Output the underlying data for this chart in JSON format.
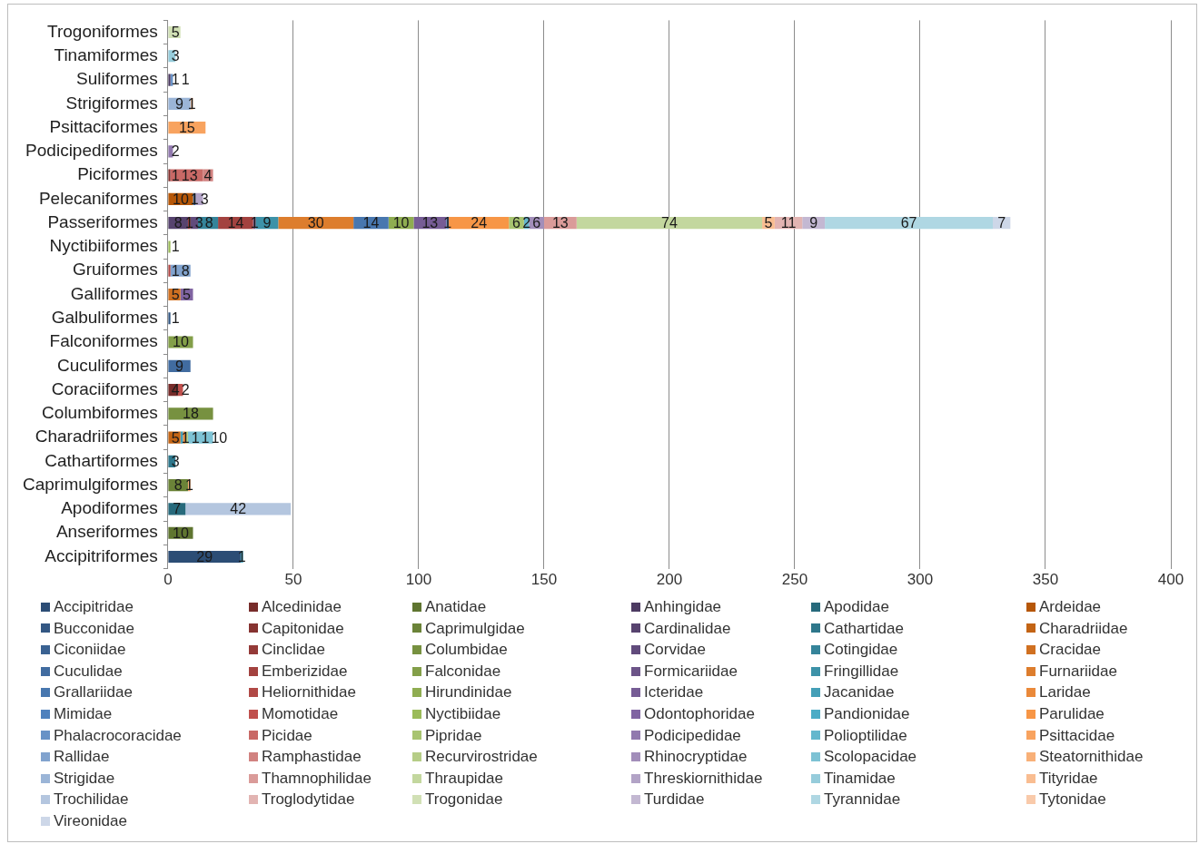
{
  "chart_data": {
    "type": "bar",
    "orientation": "horizontal",
    "stacked": true,
    "data_labels": true,
    "grid": "x",
    "legend": "bottom",
    "categories": [
      "Trogoniformes",
      "Tinamiformes",
      "Suliformes",
      "Strigiformes",
      "Psittaciformes",
      "Podicipediformes",
      "Piciformes",
      "Pelecaniformes",
      "Passeriformes",
      "Nyctibiiformes",
      "Gruiformes",
      "Galliformes",
      "Galbuliformes",
      "Falconiformes",
      "Cuculiformes",
      "Coraciiformes",
      "Columbiformes",
      "Charadriiformes",
      "Cathartiformes",
      "Caprimulgiformes",
      "Apodiformes",
      "Anseriformes",
      "Accipitriformes"
    ],
    "xlim": [
      0,
      400
    ],
    "xticks": [
      0,
      50,
      100,
      150,
      200,
      250,
      300,
      350,
      400
    ],
    "series": [
      {
        "name": "Accipitridae",
        "color": "#2c4d75",
        "values": [
          null,
          null,
          null,
          null,
          null,
          null,
          null,
          null,
          null,
          null,
          null,
          null,
          null,
          null,
          null,
          null,
          null,
          null,
          null,
          null,
          null,
          null,
          29
        ]
      },
      {
        "name": "Alcedinidae",
        "color": "#772c2a",
        "values": [
          null,
          null,
          null,
          null,
          null,
          null,
          null,
          null,
          null,
          null,
          null,
          null,
          null,
          null,
          null,
          4,
          null,
          null,
          null,
          null,
          null,
          null,
          null
        ]
      },
      {
        "name": "Anatidae",
        "color": "#5f7530",
        "values": [
          null,
          null,
          null,
          null,
          null,
          null,
          null,
          null,
          null,
          null,
          null,
          null,
          null,
          null,
          null,
          null,
          null,
          null,
          null,
          null,
          null,
          10,
          null
        ]
      },
      {
        "name": "Anhingidae",
        "color": "#4d3b62",
        "values": [
          null,
          null,
          1,
          null,
          null,
          null,
          null,
          null,
          null,
          null,
          null,
          null,
          null,
          null,
          null,
          null,
          null,
          null,
          null,
          null,
          null,
          null,
          null
        ]
      },
      {
        "name": "Apodidae",
        "color": "#276a7c",
        "values": [
          null,
          null,
          null,
          null,
          null,
          null,
          null,
          null,
          null,
          null,
          null,
          null,
          null,
          null,
          null,
          null,
          null,
          null,
          null,
          null,
          7,
          null,
          null
        ]
      },
      {
        "name": "Ardeidae",
        "color": "#b65708",
        "values": [
          null,
          null,
          null,
          null,
          null,
          null,
          null,
          10,
          null,
          null,
          null,
          null,
          null,
          null,
          null,
          null,
          null,
          null,
          null,
          null,
          null,
          null,
          null
        ]
      },
      {
        "name": "Bucconidae",
        "color": "#335783",
        "values": [
          null,
          null,
          null,
          null,
          null,
          null,
          null,
          null,
          null,
          null,
          null,
          null,
          1,
          null,
          null,
          null,
          null,
          null,
          null,
          null,
          null,
          null,
          null
        ]
      },
      {
        "name": "Capitonidae",
        "color": "#863331",
        "values": [
          null,
          null,
          null,
          null,
          null,
          null,
          1,
          null,
          null,
          null,
          null,
          null,
          null,
          null,
          null,
          null,
          null,
          null,
          null,
          null,
          null,
          null,
          null
        ]
      },
      {
        "name": "Caprimulgidae",
        "color": "#6b8338",
        "values": [
          null,
          null,
          null,
          null,
          null,
          null,
          null,
          null,
          null,
          null,
          null,
          null,
          null,
          null,
          null,
          null,
          null,
          null,
          null,
          8,
          null,
          null,
          null
        ]
      },
      {
        "name": "Cardinalidae",
        "color": "#57436f",
        "values": [
          null,
          null,
          null,
          null,
          null,
          null,
          null,
          null,
          8,
          null,
          null,
          null,
          null,
          null,
          null,
          null,
          null,
          null,
          null,
          null,
          null,
          null,
          null
        ]
      },
      {
        "name": "Cathartidae",
        "color": "#2e778b",
        "values": [
          null,
          null,
          null,
          null,
          null,
          null,
          null,
          null,
          null,
          null,
          null,
          null,
          null,
          null,
          null,
          null,
          null,
          null,
          3,
          null,
          null,
          null,
          null
        ]
      },
      {
        "name": "Charadriidae",
        "color": "#c36414",
        "values": [
          null,
          null,
          null,
          null,
          null,
          null,
          null,
          null,
          null,
          null,
          null,
          null,
          null,
          null,
          null,
          null,
          null,
          5,
          null,
          null,
          null,
          null,
          null
        ]
      },
      {
        "name": "Ciconiidae",
        "color": "#3a6292",
        "values": [
          null,
          null,
          null,
          null,
          null,
          null,
          null,
          1,
          null,
          null,
          null,
          null,
          null,
          null,
          null,
          null,
          null,
          null,
          null,
          null,
          null,
          null,
          null
        ]
      },
      {
        "name": "Cinclidae",
        "color": "#943a38",
        "values": [
          null,
          null,
          null,
          null,
          null,
          null,
          null,
          null,
          1,
          null,
          null,
          null,
          null,
          null,
          null,
          null,
          null,
          null,
          null,
          null,
          null,
          null,
          null
        ]
      },
      {
        "name": "Columbidae",
        "color": "#779140",
        "values": [
          null,
          null,
          null,
          null,
          null,
          null,
          null,
          null,
          null,
          null,
          null,
          null,
          null,
          null,
          null,
          null,
          18,
          null,
          null,
          null,
          null,
          null,
          null
        ]
      },
      {
        "name": "Corvidae",
        "color": "#614b7c",
        "values": [
          null,
          null,
          null,
          null,
          null,
          null,
          null,
          null,
          3,
          null,
          null,
          null,
          null,
          null,
          null,
          null,
          null,
          null,
          null,
          null,
          null,
          null,
          null
        ]
      },
      {
        "name": "Cotingidae",
        "color": "#35849a",
        "values": [
          null,
          null,
          null,
          null,
          null,
          null,
          null,
          null,
          8,
          null,
          null,
          null,
          null,
          null,
          null,
          null,
          null,
          null,
          null,
          null,
          null,
          null,
          null
        ]
      },
      {
        "name": "Cracidae",
        "color": "#d07021",
        "values": [
          null,
          null,
          null,
          null,
          null,
          null,
          null,
          null,
          null,
          null,
          null,
          5,
          null,
          null,
          null,
          null,
          null,
          null,
          null,
          null,
          null,
          null,
          null
        ]
      },
      {
        "name": "Cuculidae",
        "color": "#416ca0",
        "values": [
          null,
          null,
          null,
          null,
          null,
          null,
          null,
          null,
          null,
          null,
          null,
          null,
          null,
          null,
          9,
          null,
          null,
          null,
          null,
          null,
          null,
          null,
          null
        ]
      },
      {
        "name": "Emberizidae",
        "color": "#a3423f",
        "values": [
          null,
          null,
          null,
          null,
          null,
          null,
          null,
          null,
          14,
          null,
          null,
          null,
          null,
          null,
          null,
          null,
          null,
          null,
          null,
          null,
          null,
          null,
          null
        ]
      },
      {
        "name": "Falconidae",
        "color": "#839f49",
        "values": [
          null,
          null,
          null,
          null,
          null,
          null,
          null,
          null,
          null,
          null,
          null,
          null,
          null,
          10,
          null,
          null,
          null,
          null,
          null,
          null,
          null,
          null,
          null
        ]
      },
      {
        "name": "Formicariidae",
        "color": "#6c5488",
        "values": [
          null,
          null,
          null,
          null,
          null,
          null,
          null,
          null,
          1,
          null,
          null,
          null,
          null,
          null,
          null,
          null,
          null,
          null,
          null,
          null,
          null,
          null,
          null
        ]
      },
      {
        "name": "Fringillidae",
        "color": "#3d92a8",
        "values": [
          null,
          null,
          null,
          null,
          null,
          null,
          null,
          null,
          9,
          null,
          null,
          null,
          null,
          null,
          null,
          null,
          null,
          null,
          null,
          null,
          null,
          null,
          null
        ]
      },
      {
        "name": "Furnariidae",
        "color": "#dd7d2d",
        "values": [
          null,
          null,
          null,
          null,
          null,
          null,
          null,
          null,
          30,
          null,
          null,
          null,
          null,
          null,
          null,
          null,
          null,
          null,
          null,
          null,
          null,
          null,
          null
        ]
      },
      {
        "name": "Grallariidae",
        "color": "#4877af",
        "values": [
          null,
          null,
          null,
          null,
          null,
          null,
          null,
          null,
          14,
          null,
          null,
          null,
          null,
          null,
          null,
          null,
          null,
          null,
          null,
          null,
          null,
          null,
          null
        ]
      },
      {
        "name": "Heliornithidae",
        "color": "#b14946",
        "values": [
          null,
          null,
          null,
          null,
          null,
          null,
          null,
          null,
          null,
          null,
          1,
          null,
          null,
          null,
          null,
          null,
          null,
          null,
          null,
          null,
          null,
          null,
          null
        ]
      },
      {
        "name": "Hirundinidae",
        "color": "#8fad51",
        "values": [
          null,
          null,
          null,
          null,
          null,
          null,
          null,
          null,
          10,
          null,
          null,
          null,
          null,
          null,
          null,
          null,
          null,
          null,
          null,
          null,
          null,
          null,
          null
        ]
      },
      {
        "name": "Icteridae",
        "color": "#765c95",
        "values": [
          null,
          null,
          null,
          null,
          null,
          null,
          null,
          null,
          13,
          null,
          null,
          null,
          null,
          null,
          null,
          null,
          null,
          null,
          null,
          null,
          null,
          null,
          null
        ]
      },
      {
        "name": "Jacanidae",
        "color": "#449fb7",
        "values": [
          null,
          null,
          null,
          null,
          null,
          null,
          null,
          null,
          null,
          null,
          null,
          null,
          null,
          null,
          null,
          null,
          null,
          1,
          null,
          null,
          null,
          null,
          null
        ]
      },
      {
        "name": "Laridae",
        "color": "#ea893a",
        "values": [
          null,
          null,
          null,
          null,
          null,
          null,
          null,
          null,
          null,
          null,
          null,
          null,
          null,
          null,
          null,
          null,
          null,
          1,
          null,
          null,
          null,
          null,
          null
        ]
      },
      {
        "name": "Mimidae",
        "color": "#4f81bd",
        "values": [
          null,
          null,
          null,
          null,
          null,
          null,
          null,
          null,
          1,
          null,
          null,
          null,
          null,
          null,
          null,
          null,
          null,
          null,
          null,
          null,
          null,
          null,
          null
        ]
      },
      {
        "name": "Momotidae",
        "color": "#c0504d",
        "values": [
          null,
          null,
          null,
          null,
          null,
          null,
          null,
          null,
          null,
          null,
          null,
          null,
          null,
          null,
          null,
          2,
          null,
          null,
          null,
          null,
          null,
          null,
          null
        ]
      },
      {
        "name": "Nyctibiidae",
        "color": "#9bbb59",
        "values": [
          null,
          null,
          null,
          null,
          null,
          null,
          null,
          null,
          null,
          1,
          null,
          null,
          null,
          null,
          null,
          null,
          null,
          null,
          null,
          null,
          null,
          null,
          null
        ]
      },
      {
        "name": "Odontophoridae",
        "color": "#8064a2",
        "values": [
          null,
          null,
          null,
          null,
          null,
          null,
          null,
          null,
          null,
          null,
          null,
          5,
          null,
          null,
          null,
          null,
          null,
          null,
          null,
          null,
          null,
          null,
          null
        ]
      },
      {
        "name": "Pandionidae",
        "color": "#4bacc6",
        "values": [
          null,
          null,
          null,
          null,
          null,
          null,
          null,
          null,
          null,
          null,
          null,
          null,
          null,
          null,
          null,
          null,
          null,
          null,
          null,
          null,
          null,
          null,
          1
        ]
      },
      {
        "name": "Parulidae",
        "color": "#f79646",
        "values": [
          null,
          null,
          null,
          null,
          null,
          null,
          null,
          null,
          24,
          null,
          null,
          null,
          null,
          null,
          null,
          null,
          null,
          null,
          null,
          null,
          null,
          null,
          null
        ]
      },
      {
        "name": "Phalacrocoracidae",
        "color": "#6892c6",
        "values": [
          null,
          null,
          1,
          null,
          null,
          null,
          null,
          null,
          null,
          null,
          null,
          null,
          null,
          null,
          null,
          null,
          null,
          null,
          null,
          null,
          null,
          null,
          null
        ]
      },
      {
        "name": "Picidae",
        "color": "#c96966",
        "values": [
          null,
          null,
          null,
          null,
          null,
          null,
          13,
          null,
          null,
          null,
          null,
          null,
          null,
          null,
          null,
          null,
          null,
          null,
          null,
          null,
          null,
          null,
          null
        ]
      },
      {
        "name": "Pipridae",
        "color": "#a8c470",
        "values": [
          null,
          null,
          null,
          null,
          null,
          null,
          null,
          null,
          6,
          null,
          null,
          null,
          null,
          null,
          null,
          null,
          null,
          null,
          null,
          null,
          null,
          null,
          null
        ]
      },
      {
        "name": "Podicipedidae",
        "color": "#9179ae",
        "values": [
          null,
          null,
          null,
          null,
          null,
          2,
          null,
          null,
          null,
          null,
          null,
          null,
          null,
          null,
          null,
          null,
          null,
          null,
          null,
          null,
          null,
          null,
          null
        ]
      },
      {
        "name": "Polioptilidae",
        "color": "#64b7cd",
        "values": [
          null,
          null,
          null,
          null,
          null,
          null,
          null,
          null,
          2,
          null,
          null,
          null,
          null,
          null,
          null,
          null,
          null,
          null,
          null,
          null,
          null,
          null,
          null
        ]
      },
      {
        "name": "Psittacidae",
        "color": "#f8a35f",
        "values": [
          null,
          null,
          null,
          null,
          15,
          null,
          null,
          null,
          null,
          null,
          null,
          null,
          null,
          null,
          null,
          null,
          null,
          null,
          null,
          null,
          null,
          null,
          null
        ]
      },
      {
        "name": "Rallidae",
        "color": "#81a3ce",
        "values": [
          null,
          null,
          null,
          null,
          null,
          null,
          null,
          null,
          null,
          null,
          8,
          null,
          null,
          null,
          null,
          null,
          null,
          null,
          null,
          null,
          null,
          null,
          null
        ]
      },
      {
        "name": "Ramphastidae",
        "color": "#d18280",
        "values": [
          null,
          null,
          null,
          null,
          null,
          null,
          4,
          null,
          null,
          null,
          null,
          null,
          null,
          null,
          null,
          null,
          null,
          null,
          null,
          null,
          null,
          null,
          null
        ]
      },
      {
        "name": "Recurvirostridae",
        "color": "#b6cd87",
        "values": [
          null,
          null,
          null,
          null,
          null,
          null,
          null,
          null,
          null,
          null,
          null,
          null,
          null,
          null,
          null,
          null,
          null,
          1,
          null,
          null,
          null,
          null,
          null
        ]
      },
      {
        "name": "Rhinocryptidae",
        "color": "#a28eba",
        "values": [
          null,
          null,
          null,
          null,
          null,
          null,
          null,
          null,
          6,
          null,
          null,
          null,
          null,
          null,
          null,
          null,
          null,
          null,
          null,
          null,
          null,
          null,
          null
        ]
      },
      {
        "name": "Scolopacidae",
        "color": "#7dc2d4",
        "values": [
          null,
          null,
          null,
          null,
          null,
          null,
          null,
          null,
          null,
          null,
          null,
          null,
          null,
          null,
          null,
          null,
          null,
          10,
          null,
          null,
          null,
          null,
          null
        ]
      },
      {
        "name": "Steatornithidae",
        "color": "#f8b078",
        "values": [
          null,
          null,
          null,
          null,
          null,
          null,
          null,
          null,
          null,
          null,
          null,
          null,
          null,
          null,
          null,
          null,
          null,
          null,
          null,
          1,
          null,
          null,
          null
        ]
      },
      {
        "name": "Strigidae",
        "color": "#9bb5d7",
        "values": [
          null,
          null,
          null,
          9,
          null,
          null,
          null,
          null,
          null,
          null,
          null,
          null,
          null,
          null,
          null,
          null,
          null,
          null,
          null,
          null,
          null,
          null,
          null
        ]
      },
      {
        "name": "Thamnophilidae",
        "color": "#da9b99",
        "values": [
          null,
          null,
          null,
          null,
          null,
          null,
          null,
          null,
          13,
          null,
          null,
          null,
          null,
          null,
          null,
          null,
          null,
          null,
          null,
          null,
          null,
          null,
          null
        ]
      },
      {
        "name": "Thraupidae",
        "color": "#c3d79e",
        "values": [
          null,
          null,
          null,
          null,
          null,
          null,
          null,
          null,
          74,
          null,
          null,
          null,
          null,
          null,
          null,
          null,
          null,
          null,
          null,
          null,
          null,
          null,
          null
        ]
      },
      {
        "name": "Threskiornithidae",
        "color": "#b2a3c6",
        "values": [
          null,
          null,
          null,
          null,
          null,
          null,
          null,
          3,
          null,
          null,
          null,
          null,
          null,
          null,
          null,
          null,
          null,
          null,
          null,
          null,
          null,
          null,
          null
        ]
      },
      {
        "name": "Tinamidae",
        "color": "#96ccdb",
        "values": [
          null,
          3,
          null,
          null,
          null,
          null,
          null,
          null,
          null,
          null,
          null,
          null,
          null,
          null,
          null,
          null,
          null,
          null,
          null,
          null,
          null,
          null,
          null
        ]
      },
      {
        "name": "Tityridae",
        "color": "#f9bd91",
        "values": [
          null,
          null,
          null,
          null,
          null,
          null,
          null,
          null,
          5,
          null,
          null,
          null,
          null,
          null,
          null,
          null,
          null,
          null,
          null,
          null,
          null,
          null,
          null
        ]
      },
      {
        "name": "Trochilidae",
        "color": "#b4c6df",
        "values": [
          null,
          null,
          null,
          null,
          null,
          null,
          null,
          null,
          null,
          null,
          null,
          null,
          null,
          null,
          null,
          null,
          null,
          null,
          null,
          null,
          42,
          null,
          null
        ]
      },
      {
        "name": "Troglodytidae",
        "color": "#e2b4b2",
        "values": [
          null,
          null,
          null,
          null,
          null,
          null,
          null,
          null,
          11,
          null,
          null,
          null,
          null,
          null,
          null,
          null,
          null,
          null,
          null,
          null,
          null,
          null,
          null
        ]
      },
      {
        "name": "Trogonidae",
        "color": "#d1e0b5",
        "values": [
          5,
          null,
          null,
          null,
          null,
          null,
          null,
          null,
          null,
          null,
          null,
          null,
          null,
          null,
          null,
          null,
          null,
          null,
          null,
          null,
          null,
          null,
          null
        ]
      },
      {
        "name": "Turdidae",
        "color": "#c3b8d2",
        "values": [
          null,
          null,
          null,
          null,
          null,
          null,
          null,
          null,
          9,
          null,
          null,
          null,
          null,
          null,
          null,
          null,
          null,
          null,
          null,
          null,
          null,
          null,
          null
        ]
      },
      {
        "name": "Tyrannidae",
        "color": "#afd7e3",
        "values": [
          null,
          null,
          null,
          null,
          null,
          null,
          null,
          null,
          67,
          null,
          null,
          null,
          null,
          null,
          null,
          null,
          null,
          null,
          null,
          null,
          null,
          null,
          null
        ]
      },
      {
        "name": "Tytonidae",
        "color": "#f9caaa",
        "values": [
          null,
          null,
          null,
          1,
          null,
          null,
          null,
          null,
          null,
          null,
          null,
          null,
          null,
          null,
          null,
          null,
          null,
          null,
          null,
          null,
          null,
          null,
          null
        ]
      },
      {
        "name": "Vireonidae",
        "color": "#cdd7e8",
        "values": [
          null,
          null,
          null,
          null,
          null,
          null,
          null,
          null,
          7,
          null,
          null,
          null,
          null,
          null,
          null,
          null,
          null,
          null,
          null,
          null,
          null,
          null,
          null
        ]
      }
    ]
  }
}
